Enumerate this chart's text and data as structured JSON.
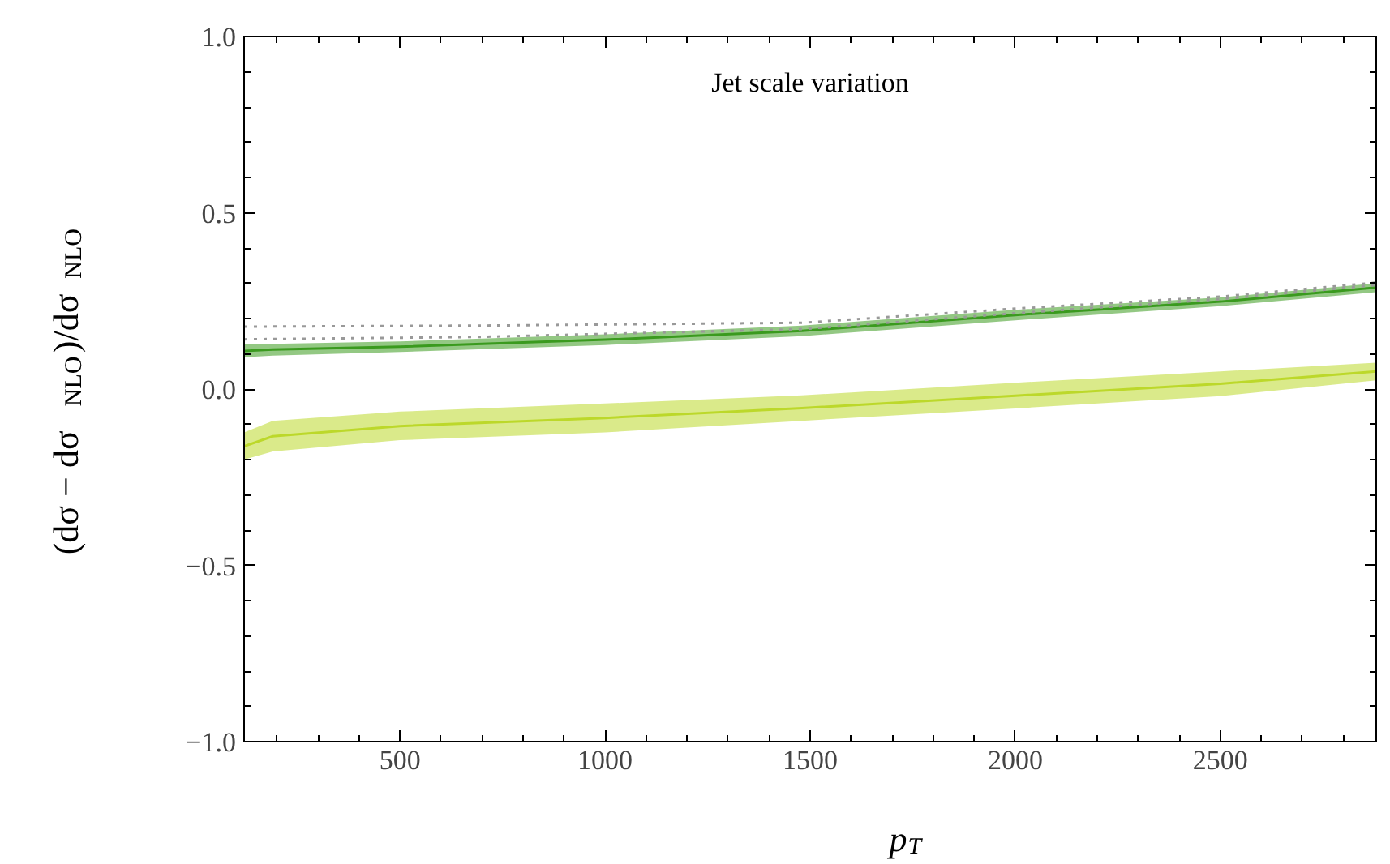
{
  "chart_data": {
    "type": "line",
    "title": "Jet scale variation",
    "xlabel": "p$_{T}$",
    "ylabel": "(dσ − dσ$_{NLO}$)/dσ$_{NLO}$",
    "xlim": [
      120,
      2880
    ],
    "ylim": [
      -1.0,
      1.0
    ],
    "xticks": [
      {
        "value": 200,
        "label": null
      },
      {
        "value": 300,
        "label": null
      },
      {
        "value": 400,
        "label": null
      },
      500,
      {
        "value": 600,
        "label": null
      },
      {
        "value": 700,
        "label": null
      },
      {
        "value": 800,
        "label": null
      },
      {
        "value": 900,
        "label": null
      },
      1000,
      {
        "value": 1100,
        "label": null
      },
      {
        "value": 1200,
        "label": null
      },
      {
        "value": 1300,
        "label": null
      },
      {
        "value": 1400,
        "label": null
      },
      1500,
      {
        "value": 1600,
        "label": null
      },
      {
        "value": 1700,
        "label": null
      },
      {
        "value": 1800,
        "label": null
      },
      {
        "value": 1900,
        "label": null
      },
      2000,
      {
        "value": 2100,
        "label": null
      },
      {
        "value": 2200,
        "label": null
      },
      {
        "value": 2300,
        "label": null
      },
      {
        "value": 2400,
        "label": null
      },
      2500,
      {
        "value": 2600,
        "label": null
      },
      {
        "value": 2700,
        "label": null
      },
      {
        "value": 2800,
        "label": null
      }
    ],
    "yticks": [
      {
        "value": -1.0,
        "label": "−1.0"
      },
      {
        "value": -0.9,
        "label": null
      },
      {
        "value": -0.8,
        "label": null
      },
      {
        "value": -0.7,
        "label": null
      },
      {
        "value": -0.6,
        "label": null
      },
      {
        "value": -0.5,
        "label": "−0.5"
      },
      {
        "value": -0.4,
        "label": null
      },
      {
        "value": -0.3,
        "label": null
      },
      {
        "value": -0.2,
        "label": null
      },
      {
        "value": -0.1,
        "label": null
      },
      {
        "value": 0.0,
        "label": "0.0"
      },
      {
        "value": 0.1,
        "label": null
      },
      {
        "value": 0.2,
        "label": null
      },
      {
        "value": 0.3,
        "label": null
      },
      {
        "value": 0.4,
        "label": null
      },
      {
        "value": 0.5,
        "label": "0.5"
      },
      {
        "value": 0.6,
        "label": null
      },
      {
        "value": 0.7,
        "label": null
      },
      {
        "value": 0.8,
        "label": null
      },
      {
        "value": 0.9,
        "label": null
      },
      {
        "value": 1.0,
        "label": "1.0"
      }
    ],
    "grid": false,
    "marker": "none",
    "x": [
      120,
      190,
      500,
      1000,
      1480,
      2000,
      2500,
      2880
    ],
    "series": [
      {
        "color": "#bcd82a",
        "line_style": "solid",
        "values": [
          -0.162,
          -0.134,
          -0.105,
          -0.082,
          -0.054,
          -0.019,
          0.015,
          0.05
        ],
        "lower": [
          -0.2,
          -0.177,
          -0.145,
          -0.123,
          -0.09,
          -0.055,
          -0.02,
          0.025
        ],
        "upper": [
          -0.123,
          -0.09,
          -0.064,
          -0.041,
          -0.018,
          0.018,
          0.05,
          0.075
        ]
      },
      {
        "color": "#3a9a1e",
        "line_style": "solid",
        "values": [
          0.108,
          0.112,
          0.12,
          0.14,
          0.165,
          0.21,
          0.248,
          0.288
        ],
        "lower": [
          0.09,
          0.095,
          0.105,
          0.125,
          0.15,
          0.195,
          0.235,
          0.275
        ],
        "upper": [
          0.127,
          0.128,
          0.135,
          0.155,
          0.18,
          0.225,
          0.26,
          0.3
        ]
      },
      {
        "color": "#999999",
        "line_style": "dotted",
        "x": [
          120,
          700,
          1480,
          2000,
          2500,
          2880
        ],
        "values": [
          0.177,
          0.18,
          0.188,
          0.228,
          0.262,
          0.302
        ]
      },
      {
        "color": "#999999",
        "line_style": "dotted",
        "x": [
          120,
          700,
          1480,
          2000,
          2500,
          2880
        ],
        "values": [
          0.141,
          0.148,
          0.17,
          0.215,
          0.255,
          0.295
        ]
      }
    ]
  }
}
